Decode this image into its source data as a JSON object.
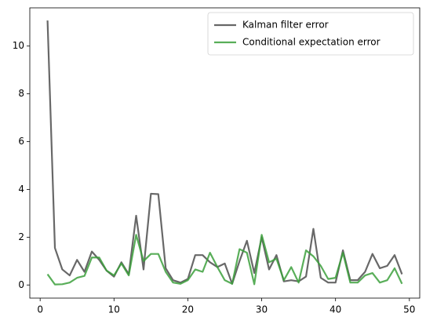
{
  "chart_data": {
    "type": "line",
    "x": [
      1,
      2,
      3,
      4,
      5,
      6,
      7,
      8,
      9,
      10,
      11,
      12,
      13,
      14,
      15,
      16,
      17,
      18,
      19,
      20,
      21,
      22,
      23,
      24,
      25,
      26,
      27,
      28,
      29,
      30,
      31,
      32,
      33,
      34,
      35,
      36,
      37,
      38,
      39,
      40,
      41,
      42,
      43,
      44,
      45,
      46,
      47,
      48,
      49
    ],
    "series": [
      {
        "name": "Kalman filter error",
        "color": "#4d4d4d",
        "values": [
          11.07,
          1.55,
          0.65,
          0.4,
          1.05,
          0.55,
          1.4,
          1.05,
          0.6,
          0.35,
          0.95,
          0.45,
          2.9,
          0.65,
          3.82,
          3.8,
          0.7,
          0.2,
          0.1,
          0.25,
          1.25,
          1.25,
          0.95,
          0.75,
          0.9,
          0.05,
          1.0,
          1.85,
          0.5,
          2.0,
          0.65,
          1.25,
          0.15,
          0.2,
          0.15,
          0.35,
          2.35,
          0.3,
          0.1,
          0.1,
          1.45,
          0.2,
          0.2,
          0.55,
          1.3,
          0.7,
          0.8,
          1.25,
          0.45
        ]
      },
      {
        "name": "Conditional expectation error",
        "color": "#3ca03c",
        "values": [
          0.45,
          0.02,
          0.03,
          0.1,
          0.3,
          0.38,
          1.15,
          1.15,
          0.6,
          0.4,
          0.9,
          0.4,
          2.1,
          1.0,
          1.3,
          1.3,
          0.55,
          0.1,
          0.05,
          0.2,
          0.65,
          0.55,
          1.35,
          0.75,
          0.2,
          0.05,
          1.5,
          1.35,
          0.03,
          2.1,
          0.95,
          1.1,
          0.2,
          0.75,
          0.1,
          1.45,
          1.2,
          0.8,
          0.25,
          0.3,
          1.35,
          0.1,
          0.1,
          0.4,
          0.5,
          0.1,
          0.2,
          0.7,
          0.05
        ]
      }
    ],
    "xlim": [
      -1.4,
      51.4
    ],
    "xticks": [
      0,
      10,
      20,
      30,
      40,
      50
    ],
    "ylim": [
      -0.55,
      11.6
    ],
    "yticks": [
      0,
      2,
      4,
      6,
      8,
      10
    ],
    "grid": false,
    "legend": "upper right"
  }
}
